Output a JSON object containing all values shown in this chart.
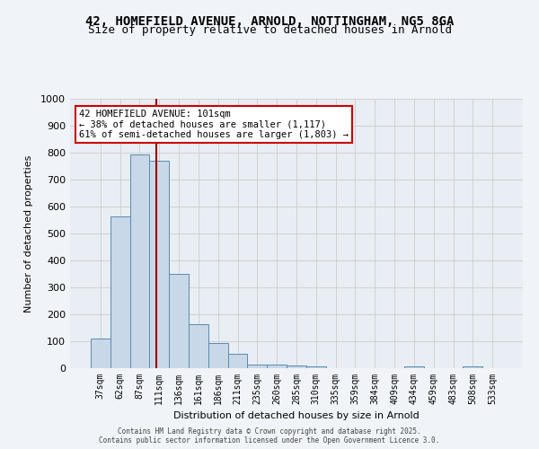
{
  "title_line1": "42, HOMEFIELD AVENUE, ARNOLD, NOTTINGHAM, NG5 8GA",
  "title_line2": "Size of property relative to detached houses in Arnold",
  "xlabel": "Distribution of detached houses by size in Arnold",
  "ylabel": "Number of detached properties",
  "categories": [
    "37sqm",
    "62sqm",
    "87sqm",
    "111sqm",
    "136sqm",
    "161sqm",
    "186sqm",
    "211sqm",
    "235sqm",
    "260sqm",
    "285sqm",
    "310sqm",
    "335sqm",
    "359sqm",
    "384sqm",
    "409sqm",
    "434sqm",
    "459sqm",
    "483sqm",
    "508sqm",
    "533sqm"
  ],
  "values": [
    110,
    565,
    795,
    770,
    350,
    165,
    95,
    52,
    15,
    12,
    10,
    8,
    0,
    0,
    0,
    0,
    8,
    0,
    0,
    8,
    0
  ],
  "bar_color": "#c8d8e8",
  "bar_edge_color": "#5a8ab0",
  "grid_color": "#cccccc",
  "bg_color": "#e8eef4",
  "vline_x": 2.85,
  "vline_color": "#990000",
  "annotation_text": "42 HOMEFIELD AVENUE: 101sqm\n← 38% of detached houses are smaller (1,117)\n61% of semi-detached houses are larger (1,803) →",
  "annotation_box_color": "#ffffff",
  "annotation_box_edge": "#cc0000",
  "ylim": [
    0,
    1000
  ],
  "yticks": [
    0,
    100,
    200,
    300,
    400,
    500,
    600,
    700,
    800,
    900,
    1000
  ],
  "footer_line1": "Contains HM Land Registry data © Crown copyright and database right 2025.",
  "footer_line2": "Contains public sector information licensed under the Open Government Licence 3.0."
}
